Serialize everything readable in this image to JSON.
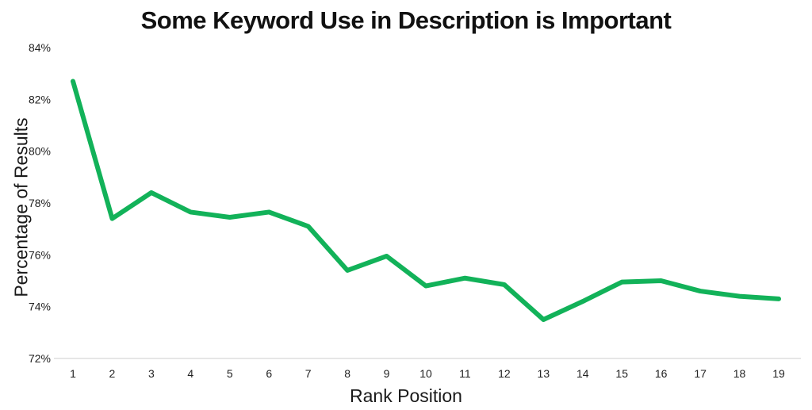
{
  "chart_data": {
    "type": "line",
    "title": "Some Keyword Use in Description is Important",
    "xlabel": "Rank Position",
    "ylabel": "Percentage of Results",
    "x": [
      1,
      2,
      3,
      4,
      5,
      6,
      7,
      8,
      9,
      10,
      11,
      12,
      13,
      14,
      15,
      16,
      17,
      18,
      19
    ],
    "values": [
      82.7,
      77.4,
      78.4,
      77.65,
      77.45,
      77.65,
      77.1,
      75.4,
      75.95,
      74.8,
      75.1,
      74.85,
      73.5,
      74.2,
      74.95,
      75.0,
      74.6,
      74.4,
      74.3
    ],
    "ylim": [
      72,
      84
    ],
    "yticks": [
      72,
      74,
      76,
      78,
      80,
      82,
      84
    ],
    "ytick_suffix": "%",
    "grid": false,
    "legend": "none",
    "colors": {
      "line": "#12b259",
      "axis_line": "#cccccc",
      "tick_text": "#222222",
      "background": "#ffffff"
    },
    "line_width": 6
  }
}
